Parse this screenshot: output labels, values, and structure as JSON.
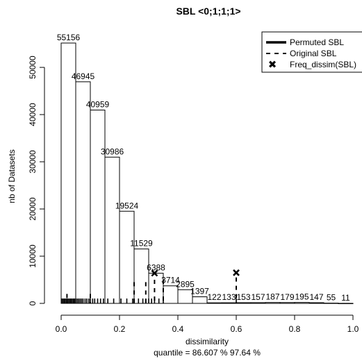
{
  "chart_data": {
    "type": "bar",
    "title": "SBL <0;1;1;1>",
    "xlabel": "dissimilarity",
    "ylabel": "nb of Datasets",
    "subtitle": "quantile = 86.607 % 97.64 %",
    "xlim": [
      0,
      1
    ],
    "ylim": [
      0,
      55156
    ],
    "x_ticks": [
      "0.0",
      "0.2",
      "0.4",
      "0.6",
      "0.8",
      "1.0"
    ],
    "y_ticks": [
      "0",
      "10000",
      "20000",
      "30000",
      "40000",
      "50000"
    ],
    "grid": false,
    "bins": [
      {
        "from": 0.0,
        "to": 0.05,
        "count": 55156,
        "label": "55156"
      },
      {
        "from": 0.05,
        "to": 0.1,
        "count": 46945,
        "label": "46945"
      },
      {
        "from": 0.1,
        "to": 0.15,
        "count": 40959,
        "label": "40959"
      },
      {
        "from": 0.15,
        "to": 0.2,
        "count": 30986,
        "label": "30986"
      },
      {
        "from": 0.2,
        "to": 0.25,
        "count": 19524,
        "label": "19524"
      },
      {
        "from": 0.25,
        "to": 0.3,
        "count": 11529,
        "label": "11529"
      },
      {
        "from": 0.3,
        "to": 0.35,
        "count": 6388,
        "label": "6388"
      },
      {
        "from": 0.35,
        "to": 0.4,
        "count": 3714,
        "label": "3714"
      },
      {
        "from": 0.4,
        "to": 0.45,
        "count": 2895,
        "label": "2895"
      },
      {
        "from": 0.45,
        "to": 0.5,
        "count": 1397,
        "label": "1397"
      },
      {
        "from": 0.5,
        "to": 0.55,
        "count": 122,
        "label": "122"
      },
      {
        "from": 0.55,
        "to": 0.6,
        "count": 133,
        "label": "133"
      },
      {
        "from": 0.6,
        "to": 0.65,
        "count": 153,
        "label": "153"
      },
      {
        "from": 0.65,
        "to": 0.7,
        "count": 157,
        "label": "157"
      },
      {
        "from": 0.7,
        "to": 0.75,
        "count": 187,
        "label": "187"
      },
      {
        "from": 0.75,
        "to": 0.8,
        "count": 179,
        "label": "179"
      },
      {
        "from": 0.8,
        "to": 0.85,
        "count": 195,
        "label": "195"
      },
      {
        "from": 0.85,
        "to": 0.9,
        "count": 147,
        "label": "147"
      },
      {
        "from": 0.9,
        "to": 0.95,
        "count": 55,
        "label": "55"
      },
      {
        "from": 0.95,
        "to": 1.0,
        "count": 11,
        "label": "11"
      }
    ],
    "original_sbl": [
      {
        "x": 0.02,
        "y": 2000
      },
      {
        "x": 0.1,
        "y": 2000
      },
      {
        "x": 0.25,
        "y": 4500
      },
      {
        "x": 0.29,
        "y": 4500
      },
      {
        "x": 0.32,
        "y": 5000
      },
      {
        "x": 0.35,
        "y": 5000
      },
      {
        "x": 0.6,
        "y": 5500
      }
    ],
    "freq_dissim": [
      {
        "x": 0.32,
        "y": 6400
      },
      {
        "x": 0.6,
        "y": 6500
      }
    ],
    "rug": [
      0.002,
      0.006,
      0.01,
      0.014,
      0.018,
      0.022,
      0.026,
      0.03,
      0.034,
      0.038,
      0.042,
      0.046,
      0.05,
      0.055,
      0.06,
      0.065,
      0.07,
      0.075,
      0.082,
      0.088,
      0.095,
      0.1,
      0.108,
      0.115,
      0.125,
      0.135,
      0.145,
      0.16,
      0.18,
      0.205,
      0.225,
      0.245,
      0.25,
      0.265,
      0.28,
      0.29,
      0.3,
      0.31,
      0.32,
      0.335,
      0.35,
      0.6
    ],
    "legend": {
      "position": "top-right",
      "entries": [
        "Permuted SBL",
        "Original SBL",
        "Freq_dissim(SBL)"
      ]
    }
  }
}
